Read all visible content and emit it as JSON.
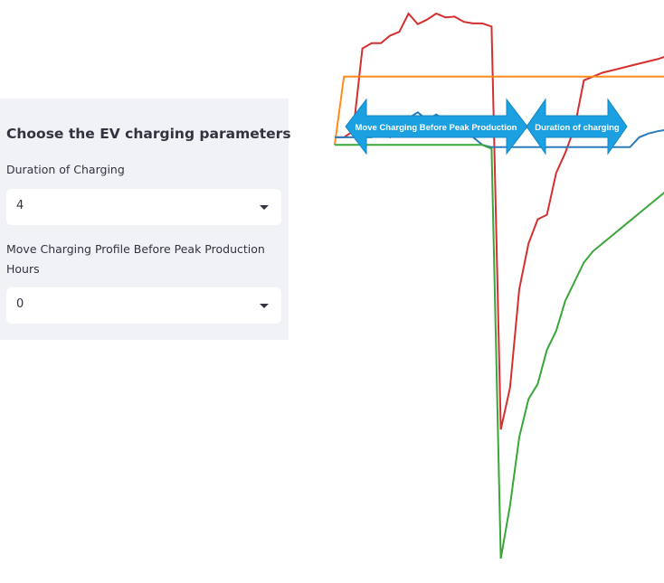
{
  "sidebar": {
    "title": "Choose the EV charging parameters",
    "duration_label": "Duration of Charging",
    "duration_value": "4",
    "move_label": "Move Charging Profile Before Peak Production Hours",
    "move_value": "0"
  },
  "annotations": {
    "arrow1_label": "Move Charging Before Peak Production",
    "arrow2_label": "Duration of charging"
  },
  "colors": {
    "blue": "#2b7bba",
    "orange": "#ff8c1a",
    "green": "#3aa63a",
    "red": "#d62f2f",
    "arrow_fill": "#1ba1e2"
  },
  "chart_data": {
    "type": "line",
    "title": "",
    "xlabel": "",
    "ylabel": "",
    "series": [
      {
        "color": "#d62f2f",
        "x": [
          0,
          1,
          2,
          3,
          4,
          5,
          6,
          7,
          8,
          9,
          10,
          11,
          12,
          13,
          14,
          15,
          16,
          17,
          18,
          19,
          20,
          21,
          22,
          23,
          24,
          25,
          26,
          27,
          28,
          29,
          30,
          31,
          32,
          33,
          34,
          35,
          36
        ],
        "y": [
          0.55,
          0.55,
          0.63,
          1.72,
          1.79,
          1.79,
          1.89,
          1.94,
          2.18,
          2.04,
          2.1,
          2.18,
          2.13,
          2.14,
          2.07,
          2.05,
          2.05,
          2.01,
          -3.3,
          -2.75,
          -1.45,
          -0.85,
          -0.53,
          -0.47,
          0.08,
          0.35,
          0.68,
          1.3,
          1.35,
          1.4,
          1.43,
          1.46,
          1.49,
          1.52,
          1.55,
          1.58,
          1.62
        ]
      },
      {
        "color": "#ff8c1a",
        "x": [
          0,
          1,
          2,
          3,
          4,
          5,
          6,
          7,
          8,
          9,
          10,
          11,
          12,
          13,
          14,
          15,
          16,
          17,
          18,
          19,
          20,
          21,
          22,
          23,
          24,
          25,
          26,
          27,
          28,
          29,
          30,
          31,
          32,
          33,
          34,
          35,
          36
        ],
        "y": [
          0.45,
          1.35,
          1.35,
          1.35,
          1.35,
          1.35,
          1.35,
          1.35,
          1.35,
          1.35,
          1.35,
          1.35,
          1.35,
          1.35,
          1.35,
          1.35,
          1.35,
          1.35,
          1.35,
          1.35,
          1.35,
          1.35,
          1.35,
          1.35,
          1.35,
          1.35,
          1.35,
          1.35,
          1.35,
          1.35,
          1.35,
          1.35,
          1.35,
          1.35,
          1.35,
          1.35,
          1.35
        ]
      },
      {
        "color": "#2b7bba",
        "x": [
          0,
          1,
          2,
          3,
          4,
          5,
          6,
          7,
          8,
          9,
          10,
          11,
          12,
          13,
          14,
          15,
          16,
          17,
          18,
          19,
          20,
          21,
          22,
          23,
          24,
          25,
          26,
          27,
          28,
          29,
          30,
          31,
          32,
          33,
          34,
          35,
          36
        ],
        "y": [
          0.55,
          0.55,
          0.55,
          0.55,
          0.55,
          0.65,
          0.55,
          0.75,
          0.8,
          0.88,
          0.78,
          0.85,
          0.78,
          0.7,
          0.65,
          0.55,
          0.45,
          0.42,
          0.42,
          0.42,
          0.42,
          0.42,
          0.42,
          0.42,
          0.42,
          0.42,
          0.42,
          0.42,
          0.42,
          0.42,
          0.42,
          0.42,
          0.42,
          0.55,
          0.6,
          0.63,
          0.65
        ]
      },
      {
        "color": "#3aa63a",
        "x": [
          0,
          1,
          2,
          3,
          4,
          5,
          6,
          7,
          8,
          9,
          10,
          11,
          12,
          13,
          14,
          15,
          16,
          17,
          18,
          19,
          20,
          21,
          22,
          23,
          24,
          25,
          26,
          27,
          28,
          29,
          30,
          31,
          32,
          33,
          34,
          35,
          36
        ],
        "y": [
          0.45,
          0.45,
          0.45,
          0.45,
          0.45,
          0.45,
          0.45,
          0.45,
          0.45,
          0.45,
          0.45,
          0.45,
          0.45,
          0.45,
          0.45,
          0.45,
          0.45,
          0.4,
          -5.0,
          -4.3,
          -3.4,
          -2.9,
          -2.7,
          -2.25,
          -2.0,
          -1.6,
          -1.35,
          -1.1,
          -0.95,
          -0.85,
          -0.75,
          -0.65,
          -0.55,
          -0.45,
          -0.35,
          -0.25,
          -0.15
        ]
      }
    ]
  }
}
